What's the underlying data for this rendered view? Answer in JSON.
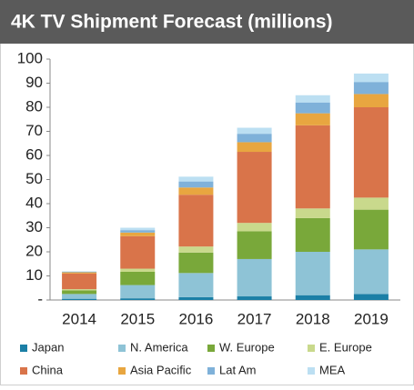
{
  "chart_data": {
    "type": "stacked_bar",
    "title": "4K TV Shipment Forecast (millions)",
    "categories": [
      "2014",
      "2015",
      "2016",
      "2017",
      "2018",
      "2019"
    ],
    "series": [
      {
        "name": "Japan",
        "color": "#1b7fa6",
        "values": [
          0.5,
          0.7,
          1.2,
          1.5,
          2,
          2.5
        ]
      },
      {
        "name": "N. America",
        "color": "#8ec3d6",
        "values": [
          2,
          5.5,
          10,
          15.5,
          18,
          18.5
        ]
      },
      {
        "name": "W. Europe",
        "color": "#79a83a",
        "values": [
          1.5,
          5.5,
          8.5,
          11.5,
          14,
          16.5
        ]
      },
      {
        "name": "E. Europe",
        "color": "#c9d98c",
        "values": [
          0.5,
          1.3,
          2.5,
          3.5,
          4,
          5
        ]
      },
      {
        "name": "China",
        "color": "#d9744a",
        "values": [
          6.5,
          13.5,
          21.5,
          29.5,
          34.5,
          37.5
        ]
      },
      {
        "name": "Asia Pacific",
        "color": "#e8a640",
        "values": [
          0.5,
          1.5,
          3,
          4,
          5,
          5.5
        ]
      },
      {
        "name": "Lat Am",
        "color": "#7fb1d9",
        "values": [
          0.2,
          1,
          2.5,
          3.5,
          4.5,
          5
        ]
      },
      {
        "name": "MEA",
        "color": "#bcdff2",
        "values": [
          0.2,
          1,
          2,
          2.5,
          3,
          3.5
        ]
      }
    ],
    "ylim": [
      0,
      100
    ],
    "yticks": [
      {
        "value": 0,
        "label": "-"
      },
      10,
      20,
      30,
      40,
      50,
      60,
      70,
      80,
      90,
      100
    ]
  }
}
